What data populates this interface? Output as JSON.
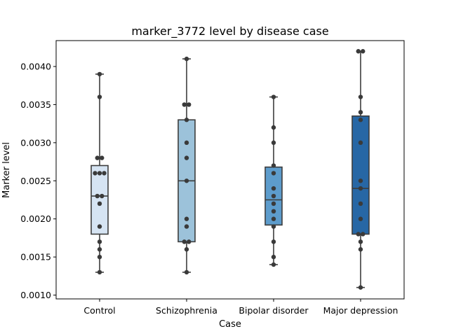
{
  "chart_data": {
    "type": "box",
    "title": "marker_3772 level by disease case",
    "xlabel": "Case",
    "ylabel": "Marker level",
    "ylim": [
      0.00095,
      0.00434
    ],
    "yticks": [
      0.001,
      0.0015,
      0.002,
      0.0025,
      0.003,
      0.0035,
      0.004
    ],
    "ytick_labels": [
      "0.0010",
      "0.0015",
      "0.0020",
      "0.0025",
      "0.0030",
      "0.0035",
      "0.0040"
    ],
    "grid": false,
    "categories": [
      "Control",
      "Schizophrenia",
      "Bipolar disorder",
      "Major depression"
    ],
    "boxes": [
      {
        "category": "Control",
        "color": "#d6e4f3",
        "whisker_low": 0.0013,
        "q1": 0.0018,
        "median": 0.0023,
        "q3": 0.0027,
        "whisker_high": 0.0039,
        "points": [
          0.0039,
          0.0036,
          0.0028,
          0.0028,
          0.0026,
          0.0026,
          0.0026,
          0.0023,
          0.0023,
          0.0022,
          0.0019,
          0.0017,
          0.0016,
          0.0015,
          0.0013
        ]
      },
      {
        "category": "Schizophrenia",
        "color": "#9cc2da",
        "whisker_low": 0.0013,
        "q1": 0.0017,
        "median": 0.0025,
        "q3": 0.0033,
        "whisker_high": 0.0041,
        "points": [
          0.0041,
          0.0035,
          0.0035,
          0.0033,
          0.003,
          0.0028,
          0.0025,
          0.002,
          0.0019,
          0.0017,
          0.0017,
          0.0016,
          0.0013
        ]
      },
      {
        "category": "Bipolar disorder",
        "color": "#5d9ccc",
        "whisker_low": 0.0014,
        "q1": 0.00192,
        "median": 0.00225,
        "q3": 0.00268,
        "whisker_high": 0.0036,
        "points": [
          0.0036,
          0.0032,
          0.003,
          0.0027,
          0.0026,
          0.0024,
          0.0023,
          0.0022,
          0.0021,
          0.002,
          0.0019,
          0.0017,
          0.0015,
          0.0014
        ]
      },
      {
        "category": "Major depression",
        "color": "#2767a5",
        "whisker_low": 0.0011,
        "q1": 0.0018,
        "median": 0.0024,
        "q3": 0.00335,
        "whisker_high": 0.0042,
        "points": [
          0.0042,
          0.0042,
          0.0036,
          0.0034,
          0.0033,
          0.003,
          0.0025,
          0.0024,
          0.0022,
          0.002,
          0.0018,
          0.0018,
          0.0017,
          0.0016,
          0.0011
        ]
      }
    ]
  }
}
